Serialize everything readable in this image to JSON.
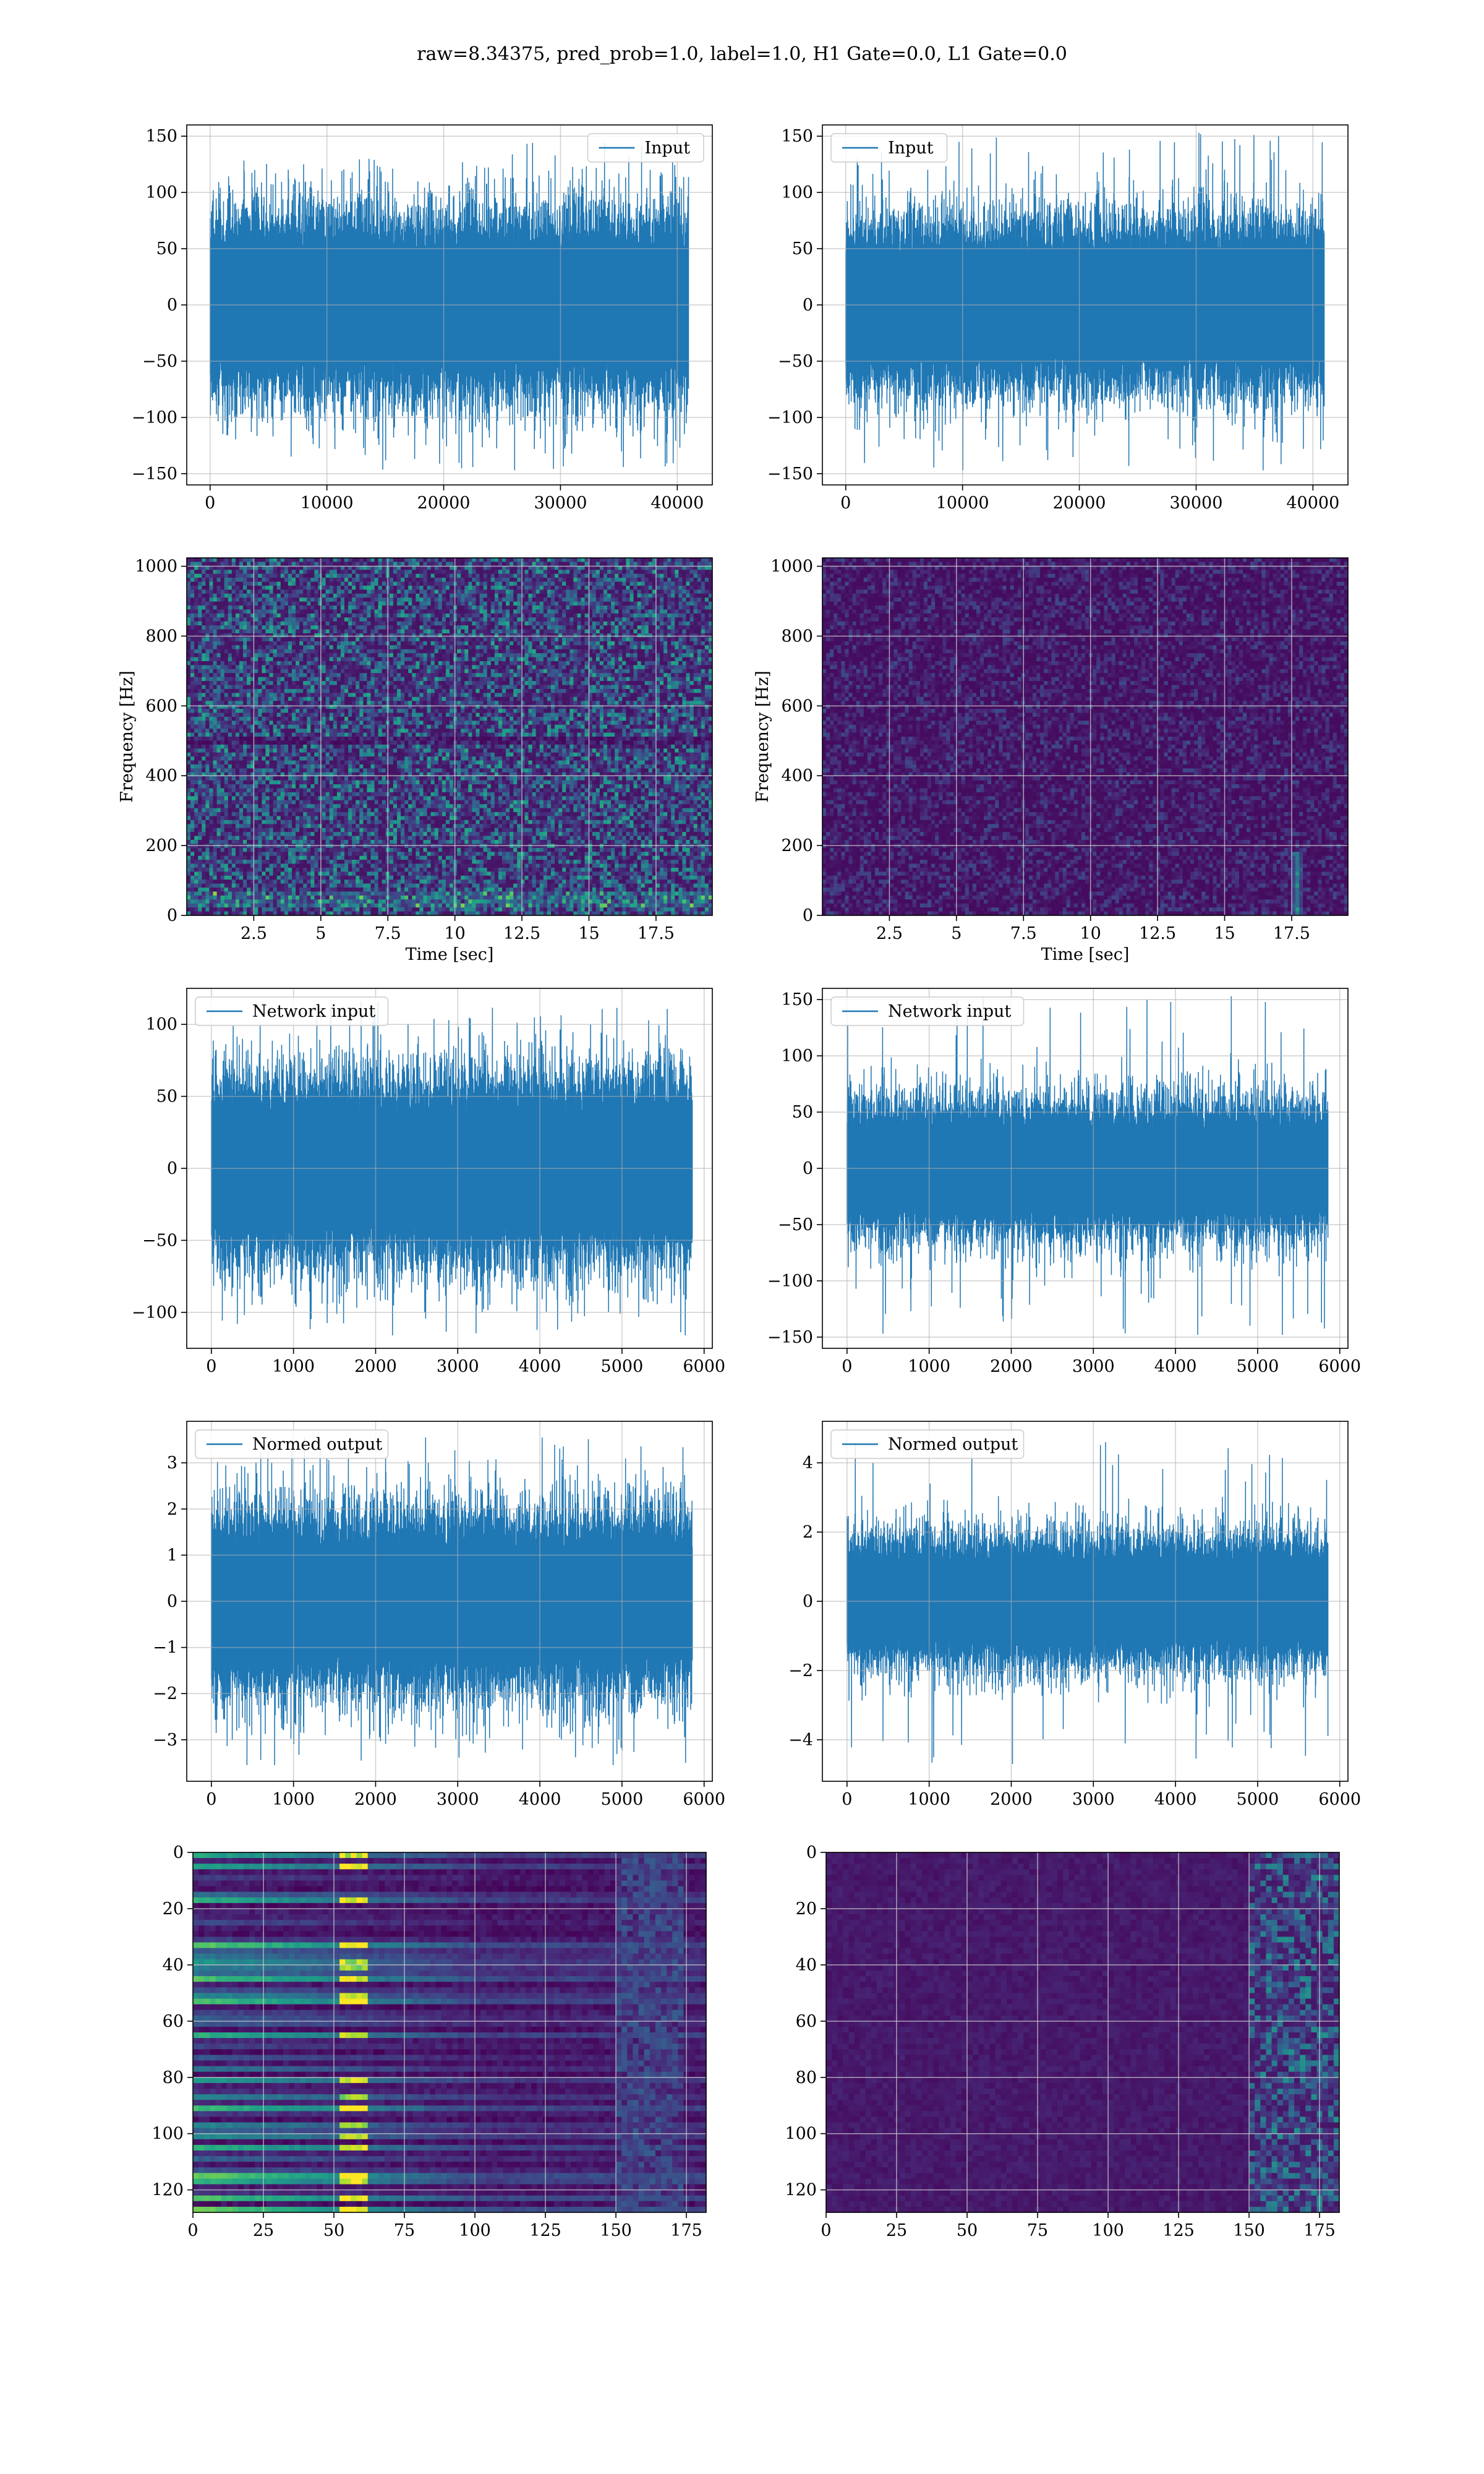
{
  "title": "raw=8.34375, pred_prob=1.0, label=1.0, H1 Gate=0.0, L1 Gate=0.0",
  "colors": {
    "line": "#1f77b4",
    "grid": "#b0b0b0",
    "axes": "#000000",
    "viridis": [
      "#440154",
      "#482878",
      "#3e4989",
      "#31688e",
      "#26828e",
      "#1f9e89",
      "#35b779",
      "#6ece58",
      "#b5de2b",
      "#fde725"
    ]
  },
  "chart_data": [
    {
      "id": "h1-input",
      "type": "line",
      "legend_label": "Input",
      "legend_loc": "upper right",
      "grid": true,
      "xlim": [
        -2000,
        43000
      ],
      "ylim": [
        -160,
        160
      ],
      "xticks": [
        0,
        10000,
        20000,
        30000,
        40000
      ],
      "yticks": [
        -150,
        -100,
        -50,
        0,
        50,
        100,
        150
      ],
      "xlabel": "",
      "ylabel": "",
      "n_samples": 40960,
      "x_range": [
        0,
        40960
      ],
      "envelope": {
        "body": [
          -75,
          75
        ],
        "peak_max": 144,
        "peak_min": -147
      }
    },
    {
      "id": "l1-input",
      "type": "line",
      "legend_label": "Input",
      "legend_loc": "upper left",
      "grid": true,
      "xlim": [
        -2000,
        43000
      ],
      "ylim": [
        -160,
        160
      ],
      "xticks": [
        0,
        10000,
        20000,
        30000,
        40000
      ],
      "yticks": [
        -150,
        -100,
        -50,
        0,
        50,
        100,
        150
      ],
      "xlabel": "",
      "ylabel": "",
      "n_samples": 40960,
      "x_range": [
        0,
        40960
      ],
      "envelope": {
        "body": [
          -70,
          70
        ],
        "peak_max": 153,
        "peak_min": -147
      }
    },
    {
      "id": "h1-spectrogram",
      "type": "heatmap",
      "grid": true,
      "xlim": [
        0,
        19.6
      ],
      "ylim": [
        0,
        1024
      ],
      "xticks": [
        2.5,
        5.0,
        7.5,
        10.0,
        12.5,
        15.0,
        17.5
      ],
      "yticks": [
        0,
        200,
        400,
        600,
        800,
        1000
      ],
      "xlabel": "Time [sec]",
      "ylabel": "Frequency [Hz]",
      "intensity": "high",
      "hot_band_hz": [
        40,
        50
      ]
    },
    {
      "id": "l1-spectrogram",
      "type": "heatmap",
      "grid": true,
      "xlim": [
        0,
        19.6
      ],
      "ylim": [
        0,
        1024
      ],
      "xticks": [
        2.5,
        5.0,
        7.5,
        10.0,
        12.5,
        15.0,
        17.5
      ],
      "yticks": [
        0,
        200,
        400,
        600,
        800,
        1000
      ],
      "xlabel": "Time [sec]",
      "ylabel": "Frequency [Hz]",
      "intensity": "low",
      "chirp": {
        "t": 17.7,
        "f_max": 180
      }
    },
    {
      "id": "h1-network-input",
      "type": "line",
      "legend_label": "Network input",
      "legend_loc": "upper left",
      "grid": true,
      "xlim": [
        -300,
        6100
      ],
      "ylim": [
        -125,
        125
      ],
      "xticks": [
        0,
        1000,
        2000,
        3000,
        4000,
        5000,
        6000
      ],
      "yticks": [
        -100,
        -50,
        0,
        50,
        100
      ],
      "xlabel": "",
      "ylabel": "",
      "n_samples": 5856,
      "x_range": [
        0,
        5856
      ],
      "envelope": {
        "body": [
          -60,
          60
        ],
        "peak_max": 116,
        "peak_min": -116
      }
    },
    {
      "id": "l1-network-input",
      "type": "line",
      "legend_label": "Network input",
      "legend_loc": "upper left",
      "grid": true,
      "xlim": [
        -300,
        6100
      ],
      "ylim": [
        -160,
        160
      ],
      "xticks": [
        0,
        1000,
        2000,
        3000,
        4000,
        5000,
        6000
      ],
      "yticks": [
        -150,
        -100,
        -50,
        0,
        50,
        100,
        150
      ],
      "xlabel": "",
      "ylabel": "",
      "n_samples": 5856,
      "x_range": [
        0,
        5856
      ],
      "envelope": {
        "body": [
          -55,
          55
        ],
        "peak_max": 153,
        "peak_min": -148
      }
    },
    {
      "id": "h1-normed-output",
      "type": "line",
      "legend_label": "Normed output",
      "legend_loc": "upper left",
      "grid": true,
      "xlim": [
        -300,
        6100
      ],
      "ylim": [
        -3.9,
        3.9
      ],
      "xticks": [
        0,
        1000,
        2000,
        3000,
        4000,
        5000,
        6000
      ],
      "yticks": [
        -3,
        -2,
        -1,
        0,
        1,
        2,
        3
      ],
      "xlabel": "",
      "ylabel": "",
      "n_samples": 5856,
      "x_range": [
        0,
        5856
      ],
      "envelope": {
        "body": [
          -1.8,
          1.8
        ],
        "peak_max": 3.55,
        "peak_min": -3.55
      }
    },
    {
      "id": "l1-normed-output",
      "type": "line",
      "legend_label": "Normed output",
      "legend_loc": "upper left",
      "grid": true,
      "xlim": [
        -300,
        6100
      ],
      "ylim": [
        -5.2,
        5.2
      ],
      "xticks": [
        0,
        1000,
        2000,
        3000,
        4000,
        5000,
        6000
      ],
      "yticks": [
        -4,
        -2,
        0,
        2,
        4
      ],
      "xlabel": "",
      "ylabel": "",
      "n_samples": 5856,
      "x_range": [
        0,
        5856
      ],
      "envelope": {
        "body": [
          -1.7,
          1.7
        ],
        "peak_max": 4.6,
        "peak_min": -4.7
      }
    },
    {
      "id": "h1-feature-map",
      "type": "heatmap",
      "grid": true,
      "xlim": [
        0,
        182
      ],
      "ylim": [
        128,
        0
      ],
      "xticks": [
        0,
        25,
        50,
        75,
        100,
        125,
        150,
        175
      ],
      "yticks": [
        0,
        20,
        40,
        60,
        80,
        100,
        120
      ],
      "xlabel": "",
      "ylabel": "",
      "rows": 128,
      "cols": 182,
      "intensity": "high",
      "hot_columns": [
        52,
        62
      ]
    },
    {
      "id": "l1-feature-map",
      "type": "heatmap",
      "grid": true,
      "xlim": [
        0,
        182
      ],
      "ylim": [
        128,
        0
      ],
      "xticks": [
        0,
        25,
        50,
        75,
        100,
        125,
        150,
        175
      ],
      "yticks": [
        0,
        20,
        40,
        60,
        80,
        100,
        120
      ],
      "xlabel": "",
      "ylabel": "",
      "rows": 128,
      "cols": 182,
      "intensity": "low",
      "active_from_col": 150
    }
  ]
}
